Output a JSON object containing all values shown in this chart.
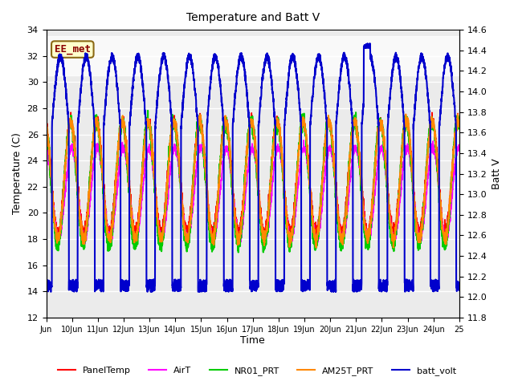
{
  "title": "Temperature and Batt V",
  "xlabel": "Time",
  "ylabel_left": "Temperature (C)",
  "ylabel_right": "Batt V",
  "xlim": [
    0,
    16
  ],
  "ylim_left": [
    12,
    34
  ],
  "ylim_right": [
    11.8,
    14.6
  ],
  "xtick_pos": [
    0,
    1,
    2,
    3,
    4,
    5,
    6,
    7,
    8,
    9,
    10,
    11,
    12,
    13,
    14,
    15,
    16
  ],
  "xtick_labels": [
    "Jun",
    "10Jun",
    "11Jun",
    "12Jun",
    "13Jun",
    "14Jun",
    "15Jun",
    "16Jun",
    "17Jun",
    "18Jun",
    "19Jun",
    "20Jun",
    "21Jun",
    "22Jun",
    "23Jun",
    "24Jun",
    "25"
  ],
  "yticks_left": [
    12,
    14,
    16,
    18,
    20,
    22,
    24,
    26,
    28,
    30,
    32,
    34
  ],
  "yticks_right": [
    11.8,
    12.0,
    12.2,
    12.4,
    12.6,
    12.8,
    13.0,
    13.2,
    13.4,
    13.6,
    13.8,
    14.0,
    14.2,
    14.4,
    14.6
  ],
  "shade_band": [
    30.5,
    33.5
  ],
  "background_color": "#ffffff",
  "plot_bg_color": "#ebebeb",
  "annotation_text": "EE_met",
  "annotation_color": "#8B0000",
  "annotation_bg": "#ffffcc",
  "annotation_border": "#8B6914",
  "series": {
    "PanelTemp": {
      "color": "#ff0000",
      "lw": 1.2
    },
    "AirT": {
      "color": "#ff00ff",
      "lw": 1.2
    },
    "NR01_PRT": {
      "color": "#00cc00",
      "lw": 1.5
    },
    "AM25T_PRT": {
      "color": "#ff8800",
      "lw": 1.5
    },
    "batt_volt": {
      "color": "#0000cc",
      "lw": 1.5
    }
  },
  "legend_entries": [
    "PanelTemp",
    "AirT",
    "NR01_PRT",
    "AM25T_PRT",
    "batt_volt"
  ],
  "legend_colors": [
    "#ff0000",
    "#ff00ff",
    "#00cc00",
    "#ff8800",
    "#0000cc"
  ]
}
